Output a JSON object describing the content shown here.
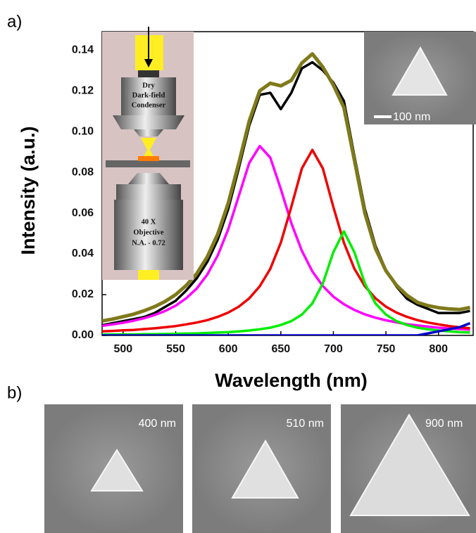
{
  "chart_data": {
    "type": "line",
    "xlabel": "Wavelength (nm)",
    "ylabel": "Intensity (a.u.)",
    "x": [
      480,
      490,
      500,
      510,
      520,
      530,
      540,
      550,
      560,
      570,
      580,
      590,
      600,
      610,
      620,
      630,
      640,
      650,
      660,
      670,
      680,
      690,
      700,
      710,
      720,
      730,
      740,
      750,
      760,
      770,
      780,
      790,
      800,
      810,
      820,
      830
    ],
    "series": [
      {
        "color": "#000000",
        "values": [
          0.005,
          0.006,
          0.007,
          0.008,
          0.009,
          0.011,
          0.014,
          0.017,
          0.022,
          0.028,
          0.036,
          0.047,
          0.062,
          0.082,
          0.103,
          0.118,
          0.119,
          0.111,
          0.119,
          0.131,
          0.134,
          0.13,
          0.124,
          0.115,
          0.088,
          0.062,
          0.044,
          0.032,
          0.024,
          0.018,
          0.015,
          0.013,
          0.011,
          0.011,
          0.011,
          0.012
        ]
      },
      {
        "color": "#ff00ff",
        "values": [
          0.0047,
          0.0054,
          0.0062,
          0.0072,
          0.0084,
          0.01,
          0.012,
          0.0146,
          0.0182,
          0.023,
          0.0298,
          0.0392,
          0.0521,
          0.0684,
          0.0846,
          0.0929,
          0.0872,
          0.0718,
          0.0551,
          0.0415,
          0.0314,
          0.0242,
          0.019,
          0.0153,
          0.0125,
          0.0103,
          0.0087,
          0.0074,
          0.0064,
          0.0055,
          0.0049,
          0.0043,
          0.0038,
          0.0034,
          0.0031,
          0.0028
        ]
      },
      {
        "color": "#ee0000",
        "values": [
          0.002,
          0.0022,
          0.0025,
          0.0027,
          0.0031,
          0.0035,
          0.004,
          0.0046,
          0.0054,
          0.0063,
          0.0075,
          0.0091,
          0.0112,
          0.0141,
          0.0182,
          0.0241,
          0.0327,
          0.0455,
          0.063,
          0.0819,
          0.091,
          0.0819,
          0.063,
          0.0455,
          0.0327,
          0.0241,
          0.0182,
          0.0141,
          0.0112,
          0.0091,
          0.0075,
          0.0063,
          0.0054,
          0.0046,
          0.004,
          0.0035
        ]
      },
      {
        "color": "#00ee00",
        "values": [
          0.0004,
          0.0004,
          0.0005,
          0.0005,
          0.0006,
          0.0006,
          0.0007,
          0.0008,
          0.0009,
          0.001,
          0.0012,
          0.0014,
          0.0016,
          0.002,
          0.0024,
          0.003,
          0.0038,
          0.0051,
          0.007,
          0.0102,
          0.0157,
          0.0255,
          0.0408,
          0.051,
          0.0408,
          0.0255,
          0.0157,
          0.0102,
          0.007,
          0.0051,
          0.0038,
          0.003,
          0.0024,
          0.002,
          0.0016,
          0.0014
        ]
      },
      {
        "color": "#0000cc",
        "values": [
          0,
          0,
          0,
          0,
          0,
          0,
          0,
          0,
          0,
          0,
          0,
          0,
          0,
          0,
          0,
          0,
          0,
          0,
          0,
          0,
          0,
          0,
          0,
          0,
          0,
          0,
          0,
          0,
          0,
          0,
          0,
          0.001,
          0.002,
          0.003,
          0.004,
          0.006
        ]
      },
      {
        "color": "#7f7a1a",
        "values": [
          0.0071,
          0.008,
          0.0092,
          0.0104,
          0.0121,
          0.0141,
          0.0167,
          0.02,
          0.0245,
          0.0303,
          0.0385,
          0.0497,
          0.0649,
          0.0845,
          0.1052,
          0.12,
          0.1237,
          0.1224,
          0.1251,
          0.1336,
          0.1381,
          0.1316,
          0.1228,
          0.1118,
          0.086,
          0.0599,
          0.0426,
          0.0317,
          0.0246,
          0.0197,
          0.0162,
          0.0146,
          0.0136,
          0.013,
          0.0127,
          0.0137
        ]
      }
    ],
    "xlim": [
      480,
      833
    ],
    "xticks": [
      500,
      550,
      600,
      650,
      700,
      750,
      800
    ],
    "ylim": [
      0,
      0.149
    ],
    "yticks": [
      {
        "value": 0,
        "label": "0.00"
      },
      0.02,
      0.04,
      0.06,
      0.08,
      {
        "value": 0.1,
        "label": "0.10"
      },
      0.12,
      0.14
    ]
  },
  "panel_labels": [
    "a)",
    "b)"
  ],
  "condenser_label": [
    "Dry",
    "Dark-field",
    "Condenser"
  ],
  "objective_label": [
    "40 X",
    "Objective",
    "N.A. - 0.72"
  ],
  "scale_bar": "100 nm",
  "sem_sizes": [
    "400 nm",
    "510 nm",
    "900 nm"
  ]
}
